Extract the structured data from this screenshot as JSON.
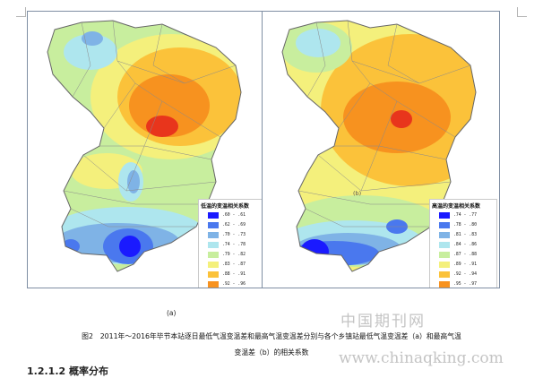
{
  "figure": {
    "label_a": "(a)",
    "label_b": "(b)",
    "caption_line1": "图2　2011年～2016年毕节本站逐日最低气温变温差和最高气温变温差分别与各个乡镇站最低气温变温差（a）和最高气温",
    "caption_line2": "变温差（b）的相关系数"
  },
  "legend_a": {
    "title": "低温的变温相关系数",
    "items": [
      {
        "label": ".60 - .61",
        "color": "#1a1aff"
      },
      {
        "label": ".62 - .69",
        "color": "#4a78ee"
      },
      {
        "label": ".70 - .73",
        "color": "#7fb3e6"
      },
      {
        "label": ".74 - .78",
        "color": "#aee6ee"
      },
      {
        "label": ".79 - .82",
        "color": "#c8ee9e"
      },
      {
        "label": ".83 - .87",
        "color": "#f4f07c"
      },
      {
        "label": ".88 - .91",
        "color": "#fbc23a"
      },
      {
        "label": ".92 - .96",
        "color": "#f7921f"
      },
      {
        "label": ".97 - 1",
        "color": "#e8351c"
      }
    ]
  },
  "legend_b": {
    "title": "高温的变温相关系数",
    "items": [
      {
        "label": ".74 - .77",
        "color": "#1a1aff"
      },
      {
        "label": ".78 - .80",
        "color": "#4a78ee"
      },
      {
        "label": ".81 - .83",
        "color": "#7fb3e6"
      },
      {
        "label": ".84 - .86",
        "color": "#aee6ee"
      },
      {
        "label": ".87 - .88",
        "color": "#c8ee9e"
      },
      {
        "label": ".89 - .91",
        "color": "#f4f07c"
      },
      {
        "label": ".92 - .94",
        "color": "#fbc23a"
      },
      {
        "label": ".95 - .97",
        "color": "#f7921f"
      },
      {
        "label": ".98 - 1",
        "color": "#e8351c"
      }
    ]
  },
  "watermark": {
    "cn": "中国期刊网",
    "url": "www.chinaqking.com"
  },
  "section_heading_partial": "1.2.1.2 概率分布"
}
